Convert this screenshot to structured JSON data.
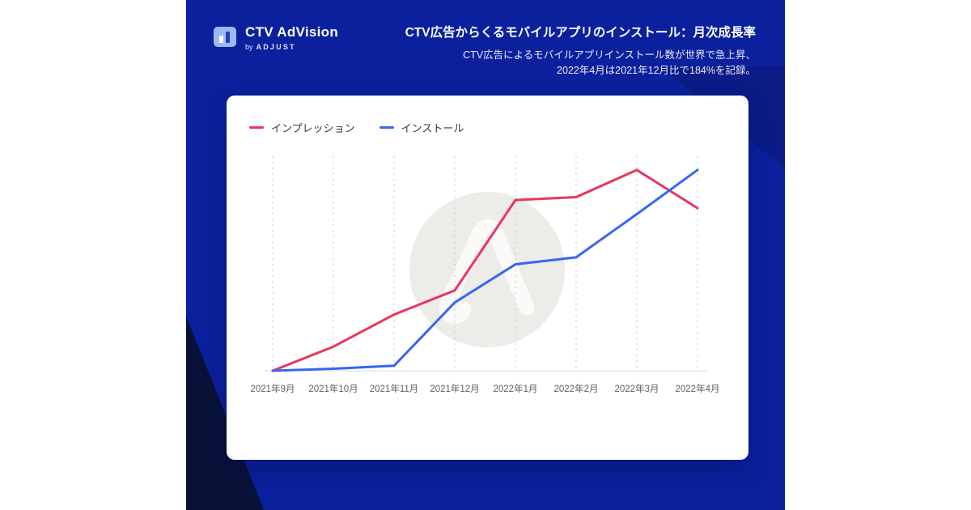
{
  "brand": {
    "name": "CTV AdVision",
    "byline_prefix": "by",
    "byline_brand": "ADJUST"
  },
  "header": {
    "title": "CTV広告からくるモバイルアプリのインストール：月次成長率",
    "subtitle_line1": "CTV広告によるモバイルアプリインストール数が世界で急上昇、",
    "subtitle_line2": "2022年4月は2021年12月比で184%を記録。"
  },
  "colors": {
    "panel_background": "#0b209d",
    "panel_dark_shape": "#081239",
    "impression_red": "#e8365d",
    "install_blue": "#3567f2",
    "card_background": "#ffffff"
  },
  "chart_data": {
    "type": "line",
    "title": "CTV広告からくるモバイルアプリのインストール：月次成長率",
    "categories": [
      "2021年9月",
      "2021年10月",
      "2021年11月",
      "2021年12月",
      "2022年1月",
      "2022年2月",
      "2022年3月",
      "2022年4月"
    ],
    "series": [
      {
        "name": "インプレッション",
        "color": "#e8365d",
        "values": [
          0,
          12,
          28,
          40,
          85,
          86.5,
          100,
          81
        ]
      },
      {
        "name": "インストール",
        "color": "#3567f2",
        "values": [
          0,
          1,
          2.5,
          34,
          53,
          56.5,
          78,
          100
        ]
      }
    ],
    "xlabel": "",
    "ylabel": "",
    "ylim": [
      0,
      102
    ],
    "grid": "vertical-dashed",
    "legend_position": "top-left",
    "annotations": [
      "adjust-logo-watermark"
    ]
  }
}
